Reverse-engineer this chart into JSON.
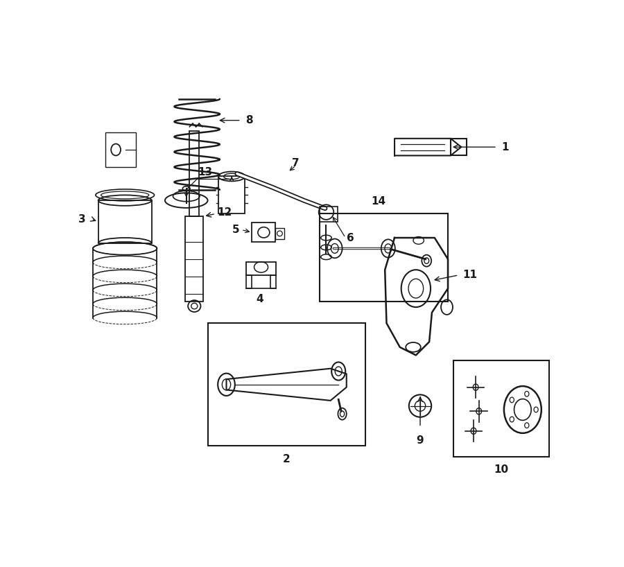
{
  "bg_color": "#ffffff",
  "line_color": "#1a1a1a",
  "fig_width": 9.0,
  "fig_height": 8.18,
  "dpi": 100,
  "title": "",
  "subtitle": ""
}
